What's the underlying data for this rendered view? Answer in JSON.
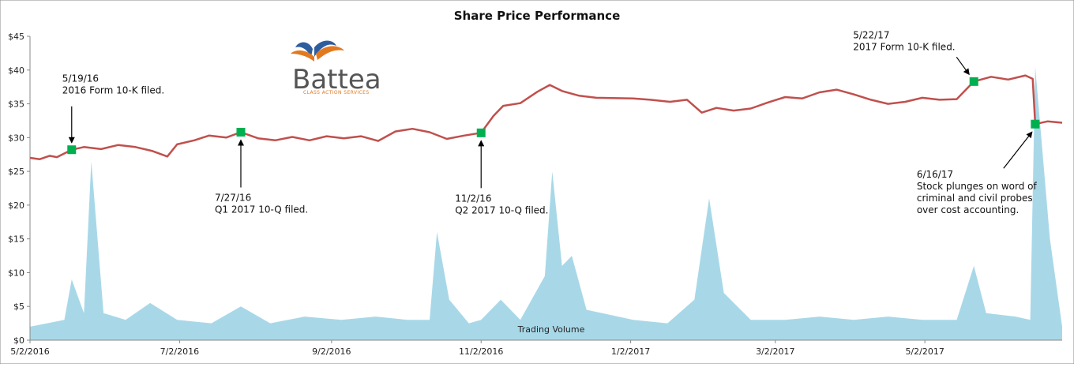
{
  "chart_data": {
    "type": "line",
    "title": "Share Price Performance",
    "xlabel": "",
    "ylabel": "",
    "y_ticks": [
      "$0",
      "$5",
      "$10",
      "$15",
      "$20",
      "$25",
      "$30",
      "$35",
      "$40",
      "$45"
    ],
    "ylim": [
      0,
      45
    ],
    "x_ticks": [
      "5/2/2016",
      "7/2/2016",
      "9/2/2016",
      "11/2/2016",
      "1/2/2017",
      "3/2/2017",
      "5/2/2017"
    ],
    "x_range": [
      "5/2/2016",
      "6/27/2017"
    ],
    "grid": false,
    "colors": {
      "price": "#c0504d",
      "volume": "#a8d8e8",
      "marker": "#00b050"
    },
    "series": [
      {
        "type": "line",
        "points": [
          [
            "5/2/2016",
            27.0
          ],
          [
            "5/6/2016",
            26.8
          ],
          [
            "5/10/2016",
            27.3
          ],
          [
            "5/13/2016",
            27.1
          ],
          [
            "5/19/2016",
            28.2
          ],
          [
            "5/24/2016",
            28.6
          ],
          [
            "5/31/2016",
            28.3
          ],
          [
            "6/7/2016",
            28.9
          ],
          [
            "6/14/2016",
            28.6
          ],
          [
            "6/21/2016",
            28.0
          ],
          [
            "6/27/2016",
            27.2
          ],
          [
            "7/1/2016",
            29.0
          ],
          [
            "7/8/2016",
            29.6
          ],
          [
            "7/14/2016",
            30.3
          ],
          [
            "7/21/2016",
            30.0
          ],
          [
            "7/27/2016",
            30.8
          ],
          [
            "8/3/2016",
            29.9
          ],
          [
            "8/10/2016",
            29.6
          ],
          [
            "8/17/2016",
            30.1
          ],
          [
            "8/24/2016",
            29.6
          ],
          [
            "8/31/2016",
            30.2
          ],
          [
            "9/7/2016",
            29.9
          ],
          [
            "9/14/2016",
            30.2
          ],
          [
            "9/21/2016",
            29.5
          ],
          [
            "9/28/2016",
            30.9
          ],
          [
            "10/5/2016",
            31.3
          ],
          [
            "10/12/2016",
            30.8
          ],
          [
            "10/19/2016",
            29.8
          ],
          [
            "10/26/2016",
            30.3
          ],
          [
            "11/2/2016",
            30.7
          ],
          [
            "11/7/2016",
            33.2
          ],
          [
            "11/11/2016",
            34.7
          ],
          [
            "11/18/2016",
            35.1
          ],
          [
            "11/25/2016",
            36.8
          ],
          [
            "11/30/2016",
            37.8
          ],
          [
            "12/5/2016",
            36.9
          ],
          [
            "12/12/2016",
            36.2
          ],
          [
            "12/19/2016",
            35.9
          ],
          [
            "1/3/2017",
            35.8
          ],
          [
            "1/10/2017",
            35.6
          ],
          [
            "1/18/2017",
            35.3
          ],
          [
            "1/25/2017",
            35.6
          ],
          [
            "1/31/2017",
            33.7
          ],
          [
            "2/6/2017",
            34.4
          ],
          [
            "2/13/2017",
            34.0
          ],
          [
            "2/20/2017",
            34.3
          ],
          [
            "2/27/2017",
            35.2
          ],
          [
            "3/6/2017",
            36.0
          ],
          [
            "3/13/2017",
            35.8
          ],
          [
            "3/20/2017",
            36.7
          ],
          [
            "3/27/2017",
            37.1
          ],
          [
            "4/3/2017",
            36.4
          ],
          [
            "4/10/2017",
            35.6
          ],
          [
            "4/17/2017",
            35.0
          ],
          [
            "4/24/2017",
            35.3
          ],
          [
            "5/1/2017",
            35.9
          ],
          [
            "5/8/2017",
            35.6
          ],
          [
            "5/15/2017",
            35.7
          ],
          [
            "5/22/2017",
            38.3
          ],
          [
            "5/29/2017",
            39.0
          ],
          [
            "6/5/2017",
            38.6
          ],
          [
            "6/12/2017",
            39.2
          ],
          [
            "6/15/2017",
            38.7
          ],
          [
            "6/16/2017",
            32.0
          ],
          [
            "6/21/2017",
            32.4
          ],
          [
            "6/27/2017",
            32.2
          ]
        ]
      },
      {
        "name": "Trading Volume",
        "type": "area",
        "points": [
          [
            "5/2/2016",
            2.0
          ],
          [
            "5/9/2016",
            2.5
          ],
          [
            "5/16/2016",
            3.0
          ],
          [
            "5/19/2016",
            9.0
          ],
          [
            "5/24/2016",
            4.0
          ],
          [
            "5/27/2016",
            26.5
          ],
          [
            "6/1/2016",
            4.0
          ],
          [
            "6/10/2016",
            3.0
          ],
          [
            "6/20/2016",
            5.5
          ],
          [
            "7/1/2016",
            3.0
          ],
          [
            "7/15/2016",
            2.5
          ],
          [
            "7/27/2016",
            5.0
          ],
          [
            "8/8/2016",
            2.5
          ],
          [
            "8/22/2016",
            3.5
          ],
          [
            "9/6/2016",
            3.0
          ],
          [
            "9/20/2016",
            3.5
          ],
          [
            "10/3/2016",
            3.0
          ],
          [
            "10/12/2016",
            3.0
          ],
          [
            "10/15/2016",
            16.0
          ],
          [
            "10/20/2016",
            6.0
          ],
          [
            "10/28/2016",
            2.5
          ],
          [
            "11/2/2016",
            3.0
          ],
          [
            "11/10/2016",
            6.0
          ],
          [
            "11/18/2016",
            3.0
          ],
          [
            "11/28/2016",
            9.5
          ],
          [
            "12/1/2016",
            25.0
          ],
          [
            "12/5/2016",
            11.0
          ],
          [
            "12/9/2016",
            12.5
          ],
          [
            "12/15/2016",
            4.5
          ],
          [
            "1/3/2017",
            3.0
          ],
          [
            "1/17/2017",
            2.5
          ],
          [
            "1/28/2017",
            6.0
          ],
          [
            "2/3/2017",
            21.0
          ],
          [
            "2/9/2017",
            7.0
          ],
          [
            "2/20/2017",
            3.0
          ],
          [
            "3/6/2017",
            3.0
          ],
          [
            "3/20/2017",
            3.5
          ],
          [
            "4/3/2017",
            3.0
          ],
          [
            "4/17/2017",
            3.5
          ],
          [
            "5/1/2017",
            3.0
          ],
          [
            "5/15/2017",
            3.0
          ],
          [
            "5/22/2017",
            11.0
          ],
          [
            "5/27/2017",
            4.0
          ],
          [
            "6/8/2017",
            3.5
          ],
          [
            "6/14/2017",
            3.0
          ],
          [
            "6/16/2017",
            40.5
          ],
          [
            "6/22/2017",
            15.0
          ],
          [
            "6/27/2017",
            2.0
          ]
        ]
      }
    ],
    "annotations": [
      {
        "date": "5/19/2016",
        "value": 28.2,
        "lines": [
          "5/19/16",
          "2016 Form 10-K filed."
        ],
        "label_pos": "above-right"
      },
      {
        "date": "7/27/2016",
        "value": 30.8,
        "lines": [
          "7/27/16",
          "Q1 2017 10-Q filed."
        ],
        "label_pos": "below-left"
      },
      {
        "date": "11/2/2016",
        "value": 30.7,
        "lines": [
          "11/2/16",
          "Q2 2017 10-Q filed."
        ],
        "label_pos": "below-left"
      },
      {
        "date": "5/22/2017",
        "value": 38.3,
        "lines": [
          "5/22/17",
          "2017 Form 10-K filed."
        ],
        "label_pos": "above-left"
      },
      {
        "date": "6/16/2017",
        "value": 32.0,
        "lines": [
          "6/16/17",
          "Stock plunges on word of",
          "criminal and civil probes",
          "over cost accounting."
        ],
        "label_pos": "below-left"
      }
    ]
  },
  "logo": {
    "name": "Battea",
    "tagline": "CLASS ACTION SERVICES",
    "colors": {
      "blue": "#2e5d9f",
      "orange": "#e3791f"
    }
  }
}
